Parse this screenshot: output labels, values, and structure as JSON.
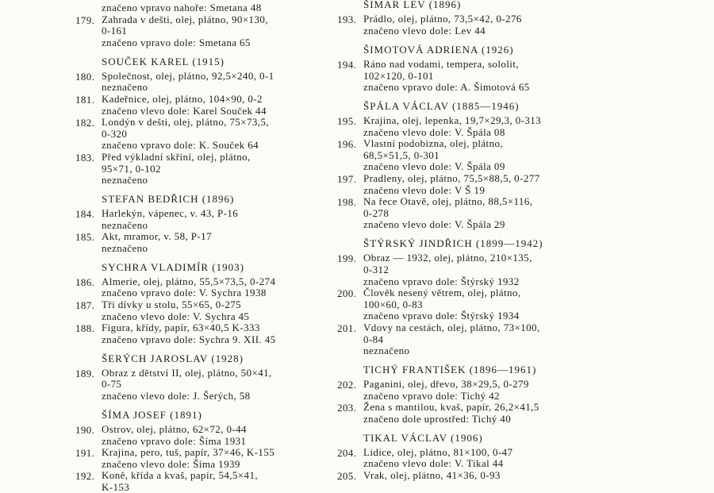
{
  "left": [
    {
      "lines": [
        "značeno vpravo nahoře: Smetana 48"
      ]
    },
    {
      "number": "179.",
      "lines": [
        "Zahrada v dešti, olej, plátno, 90×130,",
        "0-161",
        "značeno vpravo dole: Smetana 65"
      ]
    },
    {
      "heading": "SOUČEK KAREL (1915)"
    },
    {
      "number": "180.",
      "lines": [
        "Společnost, olej, plátno, 92,5×240, 0-1",
        "neznačeno"
      ]
    },
    {
      "number": "181.",
      "lines": [
        "Kadeřnice, olej, plátno, 104×90, 0-2",
        "značeno vlevo dole: Karel Souček 44"
      ]
    },
    {
      "number": "182.",
      "lines": [
        "Londýn v dešti, olej, plátno, 75×73,5,",
        "0-320",
        "značeno vpravo dole: K. Souček 64"
      ]
    },
    {
      "number": "183.",
      "lines": [
        "Před výkladní skříní, olej, plátno,",
        "95×71, 0-102",
        "neznačeno"
      ]
    },
    {
      "heading": "STEFAN BEDŘICH (1896)"
    },
    {
      "number": "184.",
      "lines": [
        "Harlekýn, vápenec, v. 43, P-16",
        "neznačeno"
      ]
    },
    {
      "number": "185.",
      "lines": [
        "Akt, mramor, v. 58, P-17",
        "neznačeno"
      ]
    },
    {
      "heading": "SYCHRA VLADIMÍR (1903)"
    },
    {
      "number": "186.",
      "lines": [
        "Almerie, olej, plátno, 55,5×73,5, 0-274",
        "značeno vpravo dole: V. Sychra 1938"
      ]
    },
    {
      "number": "187.",
      "lines": [
        "Tři dívky u stolu, 55×65, 0-275",
        "značeno vlevo dole: V. Sychra 45"
      ]
    },
    {
      "number": "188.",
      "lines": [
        "Figura, křídy, papír, 63×40,5 K-333",
        "značeno vpravo dole: Sychra 9. XII. 45"
      ]
    },
    {
      "heading": "ŠERÝCH JAROSLAV (1928)"
    },
    {
      "number": "189.",
      "lines": [
        "Obraz z dětství II, olej, plátno, 50×41,",
        "0-75",
        "značeno vlevo dole: J. Šerých, 58"
      ]
    },
    {
      "heading": "ŠÍMA JOSEF (1891)"
    },
    {
      "number": "190.",
      "lines": [
        "Ostrov, olej, plátno, 62×72, 0-44",
        "značeno vpravo dole: Šíma 1931"
      ]
    },
    {
      "number": "191.",
      "lines": [
        "Krajina, pero, tuš, papír, 37×46, K-155",
        "značeno vlevo dole: Šíma 1939"
      ]
    },
    {
      "number": "192.",
      "lines": [
        "Koně, křída a kvaš, papír, 54,5×41,",
        "K-153"
      ]
    }
  ],
  "right": [
    {
      "heading": "ŠIMAR LEV (1896)"
    },
    {
      "number": "193.",
      "lines": [
        "Prádlo, olej, plátno, 73,5×42, 0-276",
        "značeno vlevo dole: Lev 44"
      ]
    },
    {
      "heading": "ŠIMOTOVÁ ADRIENA (1926)"
    },
    {
      "number": "194.",
      "lines": [
        "Ráno nad vodami, tempera, sololit,",
        "102×120, 0-101",
        "značeno vpravo dole: A. Šimotová 65"
      ]
    },
    {
      "heading": "ŠPÁLA VÁCLAV (1885—1946)"
    },
    {
      "number": "195.",
      "lines": [
        "Krajina, olej, lepenka, 19,7×29,3, 0-313",
        "značeno vlevo dole: V. Špála 08"
      ]
    },
    {
      "number": "196.",
      "lines": [
        "Vlastní podobizna, olej, plátno,",
        "68,5×51,5, 0-301",
        "značeno vlevo dole: V. Špála 09"
      ]
    },
    {
      "number": "197.",
      "lines": [
        "Pradleny, olej, plátno, 75,5×88,5, 0-277",
        "značeno vlevo dole: V Š 19"
      ]
    },
    {
      "number": "198.",
      "lines": [
        "Na řece Otavě, olej, plátno, 88,5×116,",
        "0-278",
        "značeno vlevo dole: V. Špála 29"
      ]
    },
    {
      "heading": "ŠTÝRSKÝ JINDŘICH (1899—1942)"
    },
    {
      "number": "199.",
      "lines": [
        "Obraz — 1932, olej, plátno, 210×135,",
        "0-312",
        "značeno vpravo dole: Štýrský 1932"
      ]
    },
    {
      "number": "200.",
      "lines": [
        "Člověk nesený větrem, olej, plátno,",
        "100×60, 0-83",
        "značeno vpravo dole: Štýrský 1934"
      ]
    },
    {
      "number": "201.",
      "lines": [
        "Vdovy na cestách, olej, plátno, 73×100,",
        "0-84",
        "neznačeno"
      ]
    },
    {
      "heading": "TICHÝ FRANTIŠEK (1896—1961)"
    },
    {
      "number": "202.",
      "lines": [
        "Paganini, olej, dřevo, 38×29,5, 0-279",
        "značeno vpravo dole: Tichý 42"
      ]
    },
    {
      "number": "203.",
      "lines": [
        "Žena s mantilou, kvaš, papír, 26,2×41,5",
        "značeno dole uprostřed: Tichý 40"
      ]
    },
    {
      "heading": "TIKAL VÁCLAV (1906)"
    },
    {
      "number": "204.",
      "lines": [
        "Lidice, olej, plátno, 81×100, 0-47",
        "značeno vlevo dole: V. Tikal 44"
      ]
    },
    {
      "number": "205.",
      "lines": [
        "Vrak, olej, plátno, 41×36, 0-93"
      ]
    }
  ]
}
